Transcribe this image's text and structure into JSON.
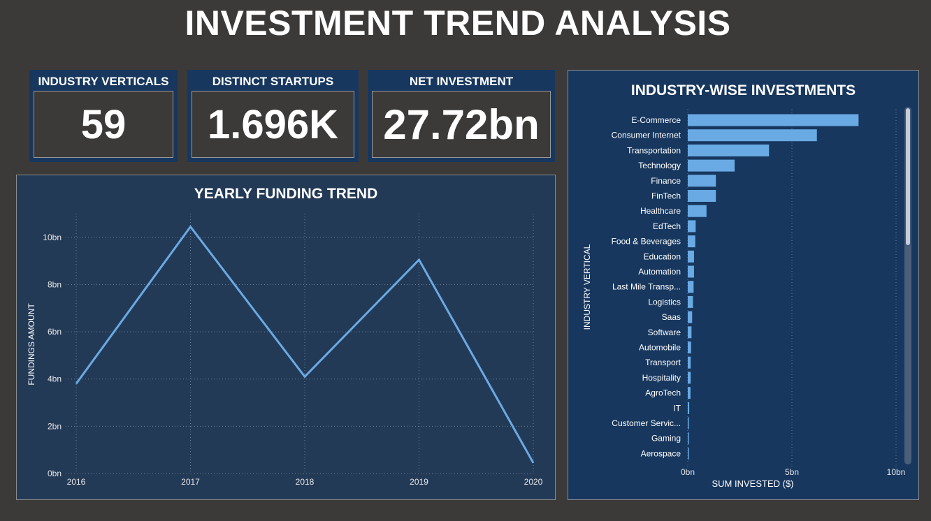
{
  "header": {
    "title": "INVESTMENT TREND ANALYSIS"
  },
  "kpis": [
    {
      "label": "INDUSTRY VERTICALS",
      "value": "59"
    },
    {
      "label": "DISTINCT STARTUPS",
      "value": "1.696K"
    },
    {
      "label": "NET INVESTMENT",
      "value": "27.72bn"
    }
  ],
  "colors": {
    "background": "#3b3a39",
    "panel_dark": "#233a57",
    "panel_blue": "#17375e",
    "series": "#6aaae4"
  },
  "chart_data": [
    {
      "type": "line",
      "title": "YEARLY FUNDING TREND",
      "ylabel": "FUNDINGS AMOUNT",
      "xlabel": "",
      "x": [
        "2016",
        "2017",
        "2018",
        "2019",
        "2020"
      ],
      "series": [
        {
          "values": [
            3.8,
            10.45,
            4.1,
            9.05,
            0.45
          ]
        }
      ],
      "ylim": [
        0,
        11
      ],
      "yticks": [
        "0bn",
        "2bn",
        "4bn",
        "6bn",
        "8bn",
        "10bn"
      ],
      "grid": true
    },
    {
      "type": "bar",
      "orientation": "horizontal",
      "title": "INDUSTRY-WISE INVESTMENTS",
      "xlabel": "SUM INVESTED ($)",
      "ylabel": "INDUSTRY VERTICAL",
      "categories": [
        "E-Commerce",
        "Consumer Internet",
        "Transportation",
        "Technology",
        "Finance",
        "FinTech",
        "Healthcare",
        "EdTech",
        "Food & Beverages",
        "Education",
        "Automation",
        "Last Mile Transp...",
        "Logistics",
        "Saas",
        "Software",
        "Automobile",
        "Transport",
        "Hospitality",
        "AgroTech",
        "IT",
        "Customer Servic...",
        "Gaming",
        "Aerospace"
      ],
      "values": [
        8.2,
        6.2,
        3.9,
        2.25,
        1.35,
        1.35,
        0.9,
        0.38,
        0.36,
        0.3,
        0.3,
        0.28,
        0.25,
        0.21,
        0.18,
        0.16,
        0.14,
        0.14,
        0.13,
        0.07,
        0.04,
        0.03,
        0.03
      ],
      "xlim": [
        0,
        10
      ],
      "xticks": [
        "0bn",
        "5bn",
        "10bn"
      ],
      "grid": true
    }
  ]
}
